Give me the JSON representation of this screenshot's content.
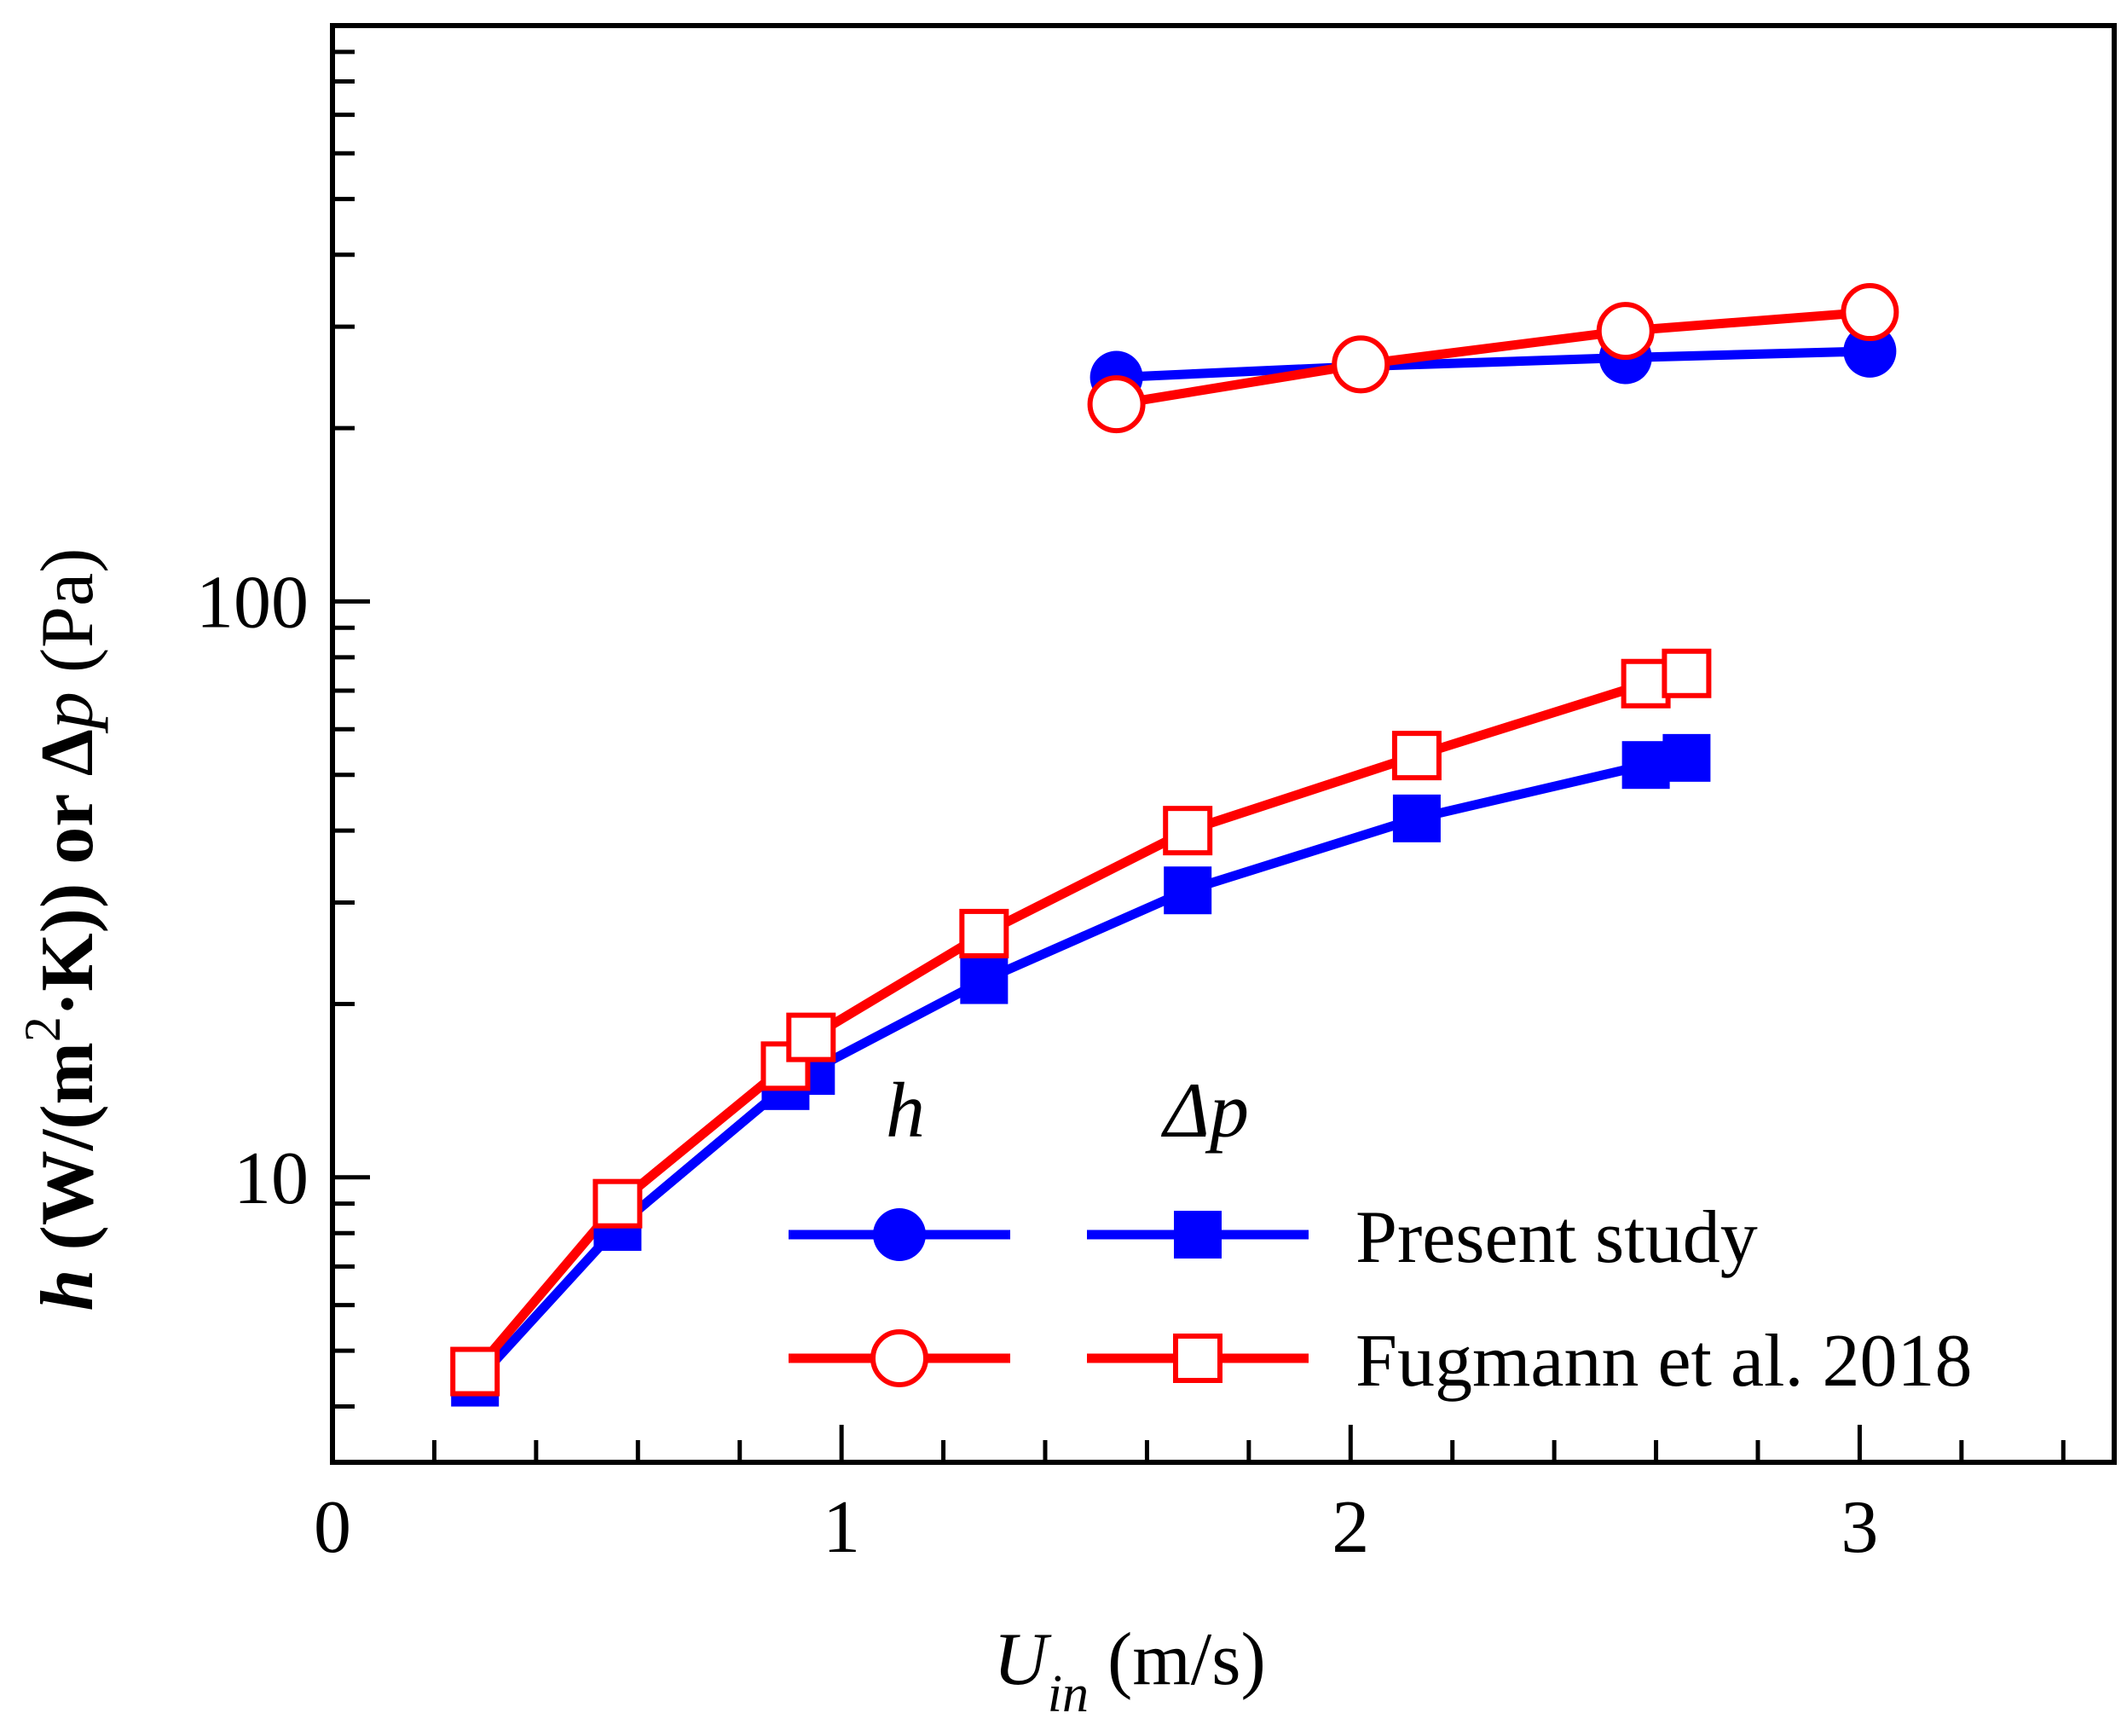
{
  "colors": {
    "present": "#0000ff",
    "fugmann": "#ff0000",
    "axis": "#000000",
    "background": "#ffffff"
  },
  "legend": {
    "header_h": "h",
    "header_dp": "Δp",
    "entry_present": "Present study",
    "entry_fugmann": "Fugmann et al. 2018"
  },
  "axes": {
    "xlabel_main": "U",
    "xlabel_sub": "in",
    "xlabel_unit": " (m/s)",
    "ylabel_h": "h",
    "ylabel_mid1": " (W/(m",
    "ylabel_sup": "2",
    "ylabel_mid2": "·K)) or Δ",
    "ylabel_p": "p",
    "ylabel_unit": " (Pa)"
  },
  "chart_data": {
    "type": "line",
    "title": "",
    "xlabel": "U_in (m/s)",
    "ylabel": "h (W/(m²·K)) or Δp (Pa)",
    "xlim": [
      0,
      3.5
    ],
    "ylim": [
      3.2,
      1000
    ],
    "yscale": "log",
    "xticks": [
      0,
      1,
      2,
      3
    ],
    "xtick_labels": [
      "0",
      "1",
      "2",
      "3"
    ],
    "yticks": [
      10,
      100
    ],
    "ytick_labels": [
      "10",
      "100"
    ],
    "legend_position": "bottom-right",
    "series": [
      {
        "name": "h Present study",
        "color": "#0000ff",
        "marker": "circle-filled",
        "x": [
          1.54,
          2.02,
          2.54,
          3.02
        ],
        "y": [
          245,
          256,
          265,
          272
        ]
      },
      {
        "name": "h Fugmann et al. 2018",
        "color": "#ff0000",
        "marker": "circle-open",
        "x": [
          1.54,
          2.02,
          2.54,
          3.02
        ],
        "y": [
          220,
          258,
          295,
          318
        ]
      },
      {
        "name": "Δp Present study",
        "color": "#0000ff",
        "marker": "square-filled",
        "x": [
          0.28,
          0.56,
          0.89,
          0.94,
          1.28,
          1.68,
          2.13,
          2.58,
          2.66
        ],
        "y": [
          4.4,
          8.2,
          14.4,
          15.3,
          22,
          31.5,
          42,
          52,
          53.5
        ]
      },
      {
        "name": "Δp Fugmann et al. 2018",
        "color": "#ff0000",
        "marker": "square-open",
        "x": [
          0.28,
          0.56,
          0.89,
          0.94,
          1.28,
          1.68,
          2.13,
          2.58,
          2.66
        ],
        "y": [
          4.6,
          9,
          15.6,
          17.5,
          26.5,
          40,
          54,
          72,
          75
        ]
      }
    ]
  }
}
